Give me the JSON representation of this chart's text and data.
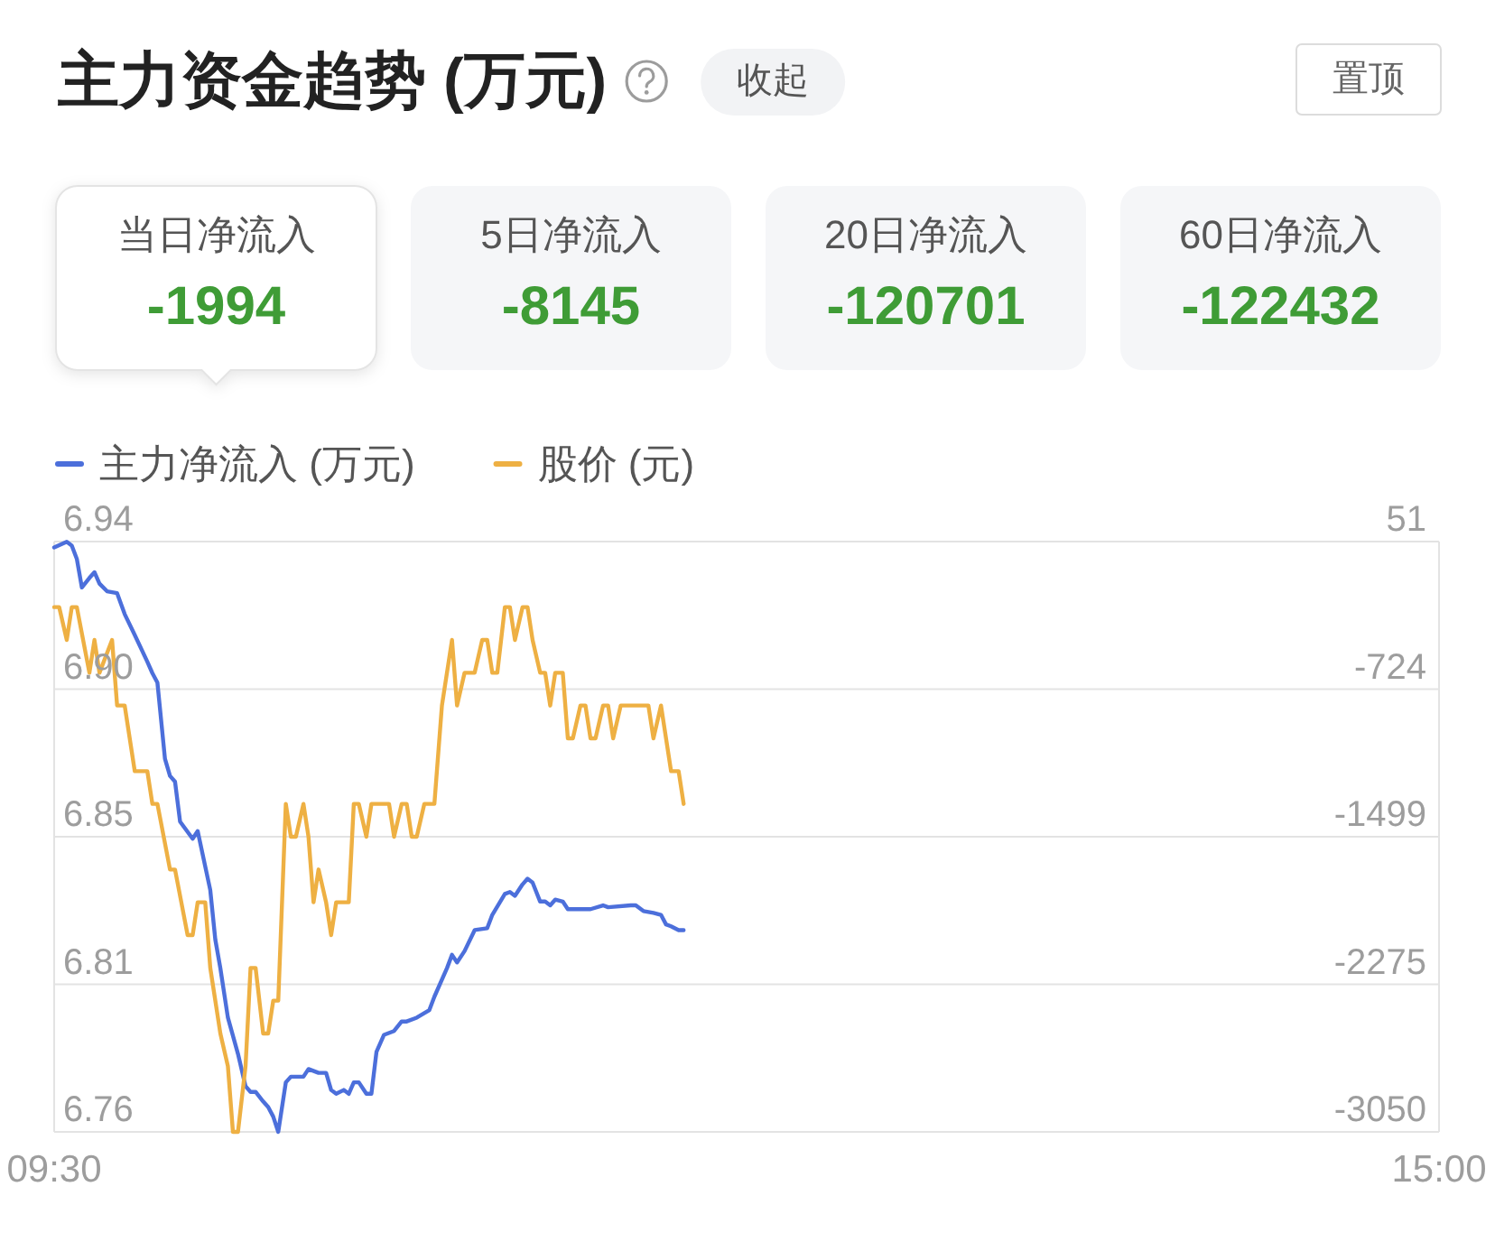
{
  "chart_data": [
    {
      "type": "other",
      "title": "主力资金趋势 (万元)",
      "annotations": [
        "收起",
        "置顶",
        "当日净流入",
        "-1994",
        "5日净流入",
        "-8145",
        "20日净流入",
        "-120701",
        "60日净流入",
        "-122432"
      ]
    },
    {
      "type": "line",
      "series": [
        {
          "name": "主力净流入 (万元)",
          "color": "#4c6fdb",
          "axis": "y2",
          "x": [
            9.5,
            9.55,
            9.57,
            9.59,
            9.61,
            9.64,
            9.66,
            9.68,
            9.71,
            9.75,
            9.78,
            9.82,
            9.87,
            9.89,
            9.91,
            9.94,
            9.96,
            9.98,
            10.0,
            10.05,
            10.07,
            10.12,
            10.14,
            10.16,
            10.19,
            10.23,
            10.26,
            10.28,
            10.3,
            10.33,
            10.35,
            10.37,
            10.39,
            10.42,
            10.44,
            10.49,
            10.51,
            10.55,
            10.58,
            10.6,
            10.62,
            10.65,
            10.67,
            10.69,
            10.71,
            10.74,
            10.76,
            10.78,
            10.81,
            10.85,
            10.88,
            10.9,
            10.94,
            10.99,
            11.01,
            11.06,
            11.08,
            11.1,
            11.13,
            11.17,
            11.22,
            11.24,
            11.29,
            11.31,
            11.33,
            11.36,
            11.38,
            11.4,
            11.43,
            11.45,
            11.47,
            11.49,
            11.52,
            11.54,
            11.59,
            11.63,
            11.68,
            11.7,
            11.79,
            11.81,
            11.84,
            11.88,
            11.91,
            11.93,
            11.95,
            11.98,
            12.0
          ],
          "values": [
            20,
            50,
            30,
            -40,
            -190,
            -140,
            -110,
            -170,
            -210,
            -220,
            -330,
            -440,
            -580,
            -640,
            -690,
            -1090,
            -1180,
            -1210,
            -1420,
            -1510,
            -1470,
            -1780,
            -2040,
            -2190,
            -2450,
            -2640,
            -2810,
            -2840,
            -2840,
            -2890,
            -2920,
            -2970,
            -3050,
            -2790,
            -2760,
            -2760,
            -2720,
            -2740,
            -2740,
            -2830,
            -2850,
            -2830,
            -2850,
            -2790,
            -2790,
            -2850,
            -2850,
            -2630,
            -2540,
            -2520,
            -2470,
            -2470,
            -2450,
            -2410,
            -2340,
            -2190,
            -2120,
            -2160,
            -2100,
            -1990,
            -1980,
            -1910,
            -1800,
            -1790,
            -1810,
            -1750,
            -1720,
            -1740,
            -1840,
            -1840,
            -1860,
            -1830,
            -1840,
            -1880,
            -1880,
            -1880,
            -1860,
            -1870,
            -1860,
            -1860,
            -1890,
            -1900,
            -1910,
            -1960,
            -1970,
            -1990,
            -1990
          ]
        },
        {
          "name": "股价 (元)",
          "color": "#eeb043",
          "x": [
            9.5,
            9.52,
            9.55,
            9.57,
            9.59,
            9.64,
            9.66,
            9.68,
            9.73,
            9.75,
            9.78,
            9.82,
            9.87,
            9.89,
            9.91,
            9.96,
            9.98,
            10.03,
            10.05,
            10.07,
            10.1,
            10.12,
            10.14,
            10.16,
            10.19,
            10.21,
            10.23,
            10.26,
            10.28,
            10.3,
            10.33,
            10.35,
            10.37,
            10.39,
            10.42,
            10.44,
            10.46,
            10.49,
            10.51,
            10.53,
            10.55,
            10.58,
            10.6,
            10.62,
            10.67,
            10.69,
            10.71,
            10.74,
            10.76,
            10.83,
            10.85,
            10.88,
            10.9,
            10.92,
            10.94,
            10.97,
            11.01,
            11.04,
            11.08,
            11.1,
            11.13,
            11.17,
            11.2,
            11.22,
            11.24,
            11.26,
            11.29,
            11.31,
            11.33,
            11.36,
            11.38,
            11.4,
            11.43,
            11.45,
            11.47,
            11.49,
            11.52,
            11.54,
            11.56,
            11.59,
            11.61,
            11.63,
            11.65,
            11.68,
            11.7,
            11.72,
            11.75,
            11.86,
            11.88,
            11.91,
            11.95,
            11.98,
            12.0
          ],
          "values": [
            6.92,
            6.92,
            6.91,
            6.92,
            6.92,
            6.9,
            6.91,
            6.9,
            6.91,
            6.89,
            6.89,
            6.87,
            6.87,
            6.86,
            6.86,
            6.84,
            6.84,
            6.82,
            6.82,
            6.83,
            6.83,
            6.81,
            6.8,
            6.79,
            6.78,
            6.76,
            6.76,
            6.78,
            6.81,
            6.81,
            6.79,
            6.79,
            6.8,
            6.8,
            6.86,
            6.85,
            6.85,
            6.86,
            6.85,
            6.83,
            6.84,
            6.83,
            6.82,
            6.83,
            6.83,
            6.86,
            6.86,
            6.85,
            6.86,
            6.86,
            6.85,
            6.86,
            6.86,
            6.85,
            6.85,
            6.86,
            6.86,
            6.89,
            6.91,
            6.89,
            6.9,
            6.9,
            6.91,
            6.91,
            6.9,
            6.9,
            6.92,
            6.92,
            6.91,
            6.92,
            6.92,
            6.91,
            6.9,
            6.9,
            6.89,
            6.9,
            6.9,
            6.88,
            6.88,
            6.89,
            6.89,
            6.88,
            6.88,
            6.89,
            6.89,
            6.88,
            6.89,
            6.89,
            6.88,
            6.89,
            6.87,
            6.87,
            6.86
          ]
        }
      ],
      "xlim": [
        9.5,
        15
      ],
      "xticks": [
        {
          "value": 9.5,
          "label": "09:30"
        },
        {
          "value": 15,
          "label": "15:00"
        }
      ],
      "ylim": [
        6.76,
        6.94
      ],
      "yticks": [
        6.94,
        {
          "value": 6.895,
          "label": "6.90"
        },
        6.85,
        {
          "value": 6.805,
          "label": "6.81"
        },
        6.76
      ],
      "y2lim": [
        -3050,
        51
      ],
      "y2ticks": [
        51,
        {
          "value": -724.25,
          "label": "-724"
        },
        {
          "value": -1499.5,
          "label": "-1499"
        },
        {
          "value": -2274.75,
          "label": "-2275"
        },
        -3050
      ],
      "grid": "y",
      "legend": "top left"
    }
  ]
}
